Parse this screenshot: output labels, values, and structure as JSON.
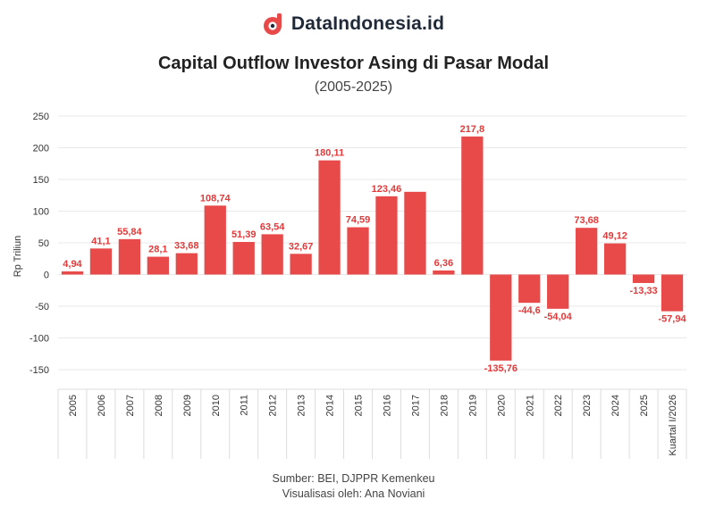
{
  "brand": {
    "name": "DataIndonesia.id",
    "logo_icon": "dataindonesia-logo-icon"
  },
  "chart_data": {
    "type": "bar",
    "title": "Capital Outflow Investor Asing di Pasar Modal",
    "subtitle": "(2005-2025)",
    "xlabel": "",
    "ylabel": "Rp Triliun",
    "ylim": [
      -180,
      250
    ],
    "yticks": [
      -150,
      -100,
      -50,
      0,
      50,
      100,
      150,
      200,
      250
    ],
    "categories": [
      "2005",
      "2006",
      "2007",
      "2008",
      "2009",
      "2010",
      "2011",
      "2012",
      "2013",
      "2014",
      "2015",
      "2016",
      "2017",
      "2018",
      "2019",
      "2020",
      "2021",
      "2022",
      "2023",
      "2024",
      "2025",
      "Kuartal I/2026"
    ],
    "values": [
      4.94,
      41.1,
      55.84,
      28.1,
      33.68,
      108.74,
      51.39,
      63.54,
      32.67,
      180.11,
      74.59,
      123.46,
      130.5,
      6.36,
      217.8,
      -135.76,
      -44.6,
      -54.04,
      73.68,
      49.12,
      -13.33,
      -57.94
    ],
    "labels": [
      "4,94",
      "41,1",
      "55,84",
      "28,1",
      "33,68",
      "108,74",
      "51,39",
      "63,54",
      "32,67",
      "180,11",
      "74,59",
      "123,46",
      "",
      "6,36",
      "217,8",
      "-135,76",
      "-44,6",
      "-54,04",
      "73,68",
      "49,12",
      "-13,33",
      "-57,94"
    ],
    "bar_color": "#e84a4a",
    "label_color": "#e03a3a",
    "grid": true
  },
  "footer": {
    "source": "Sumber: BEI, DJPPR Kemenkeu",
    "credit": "Visualisasi oleh: Ana Noviani"
  }
}
